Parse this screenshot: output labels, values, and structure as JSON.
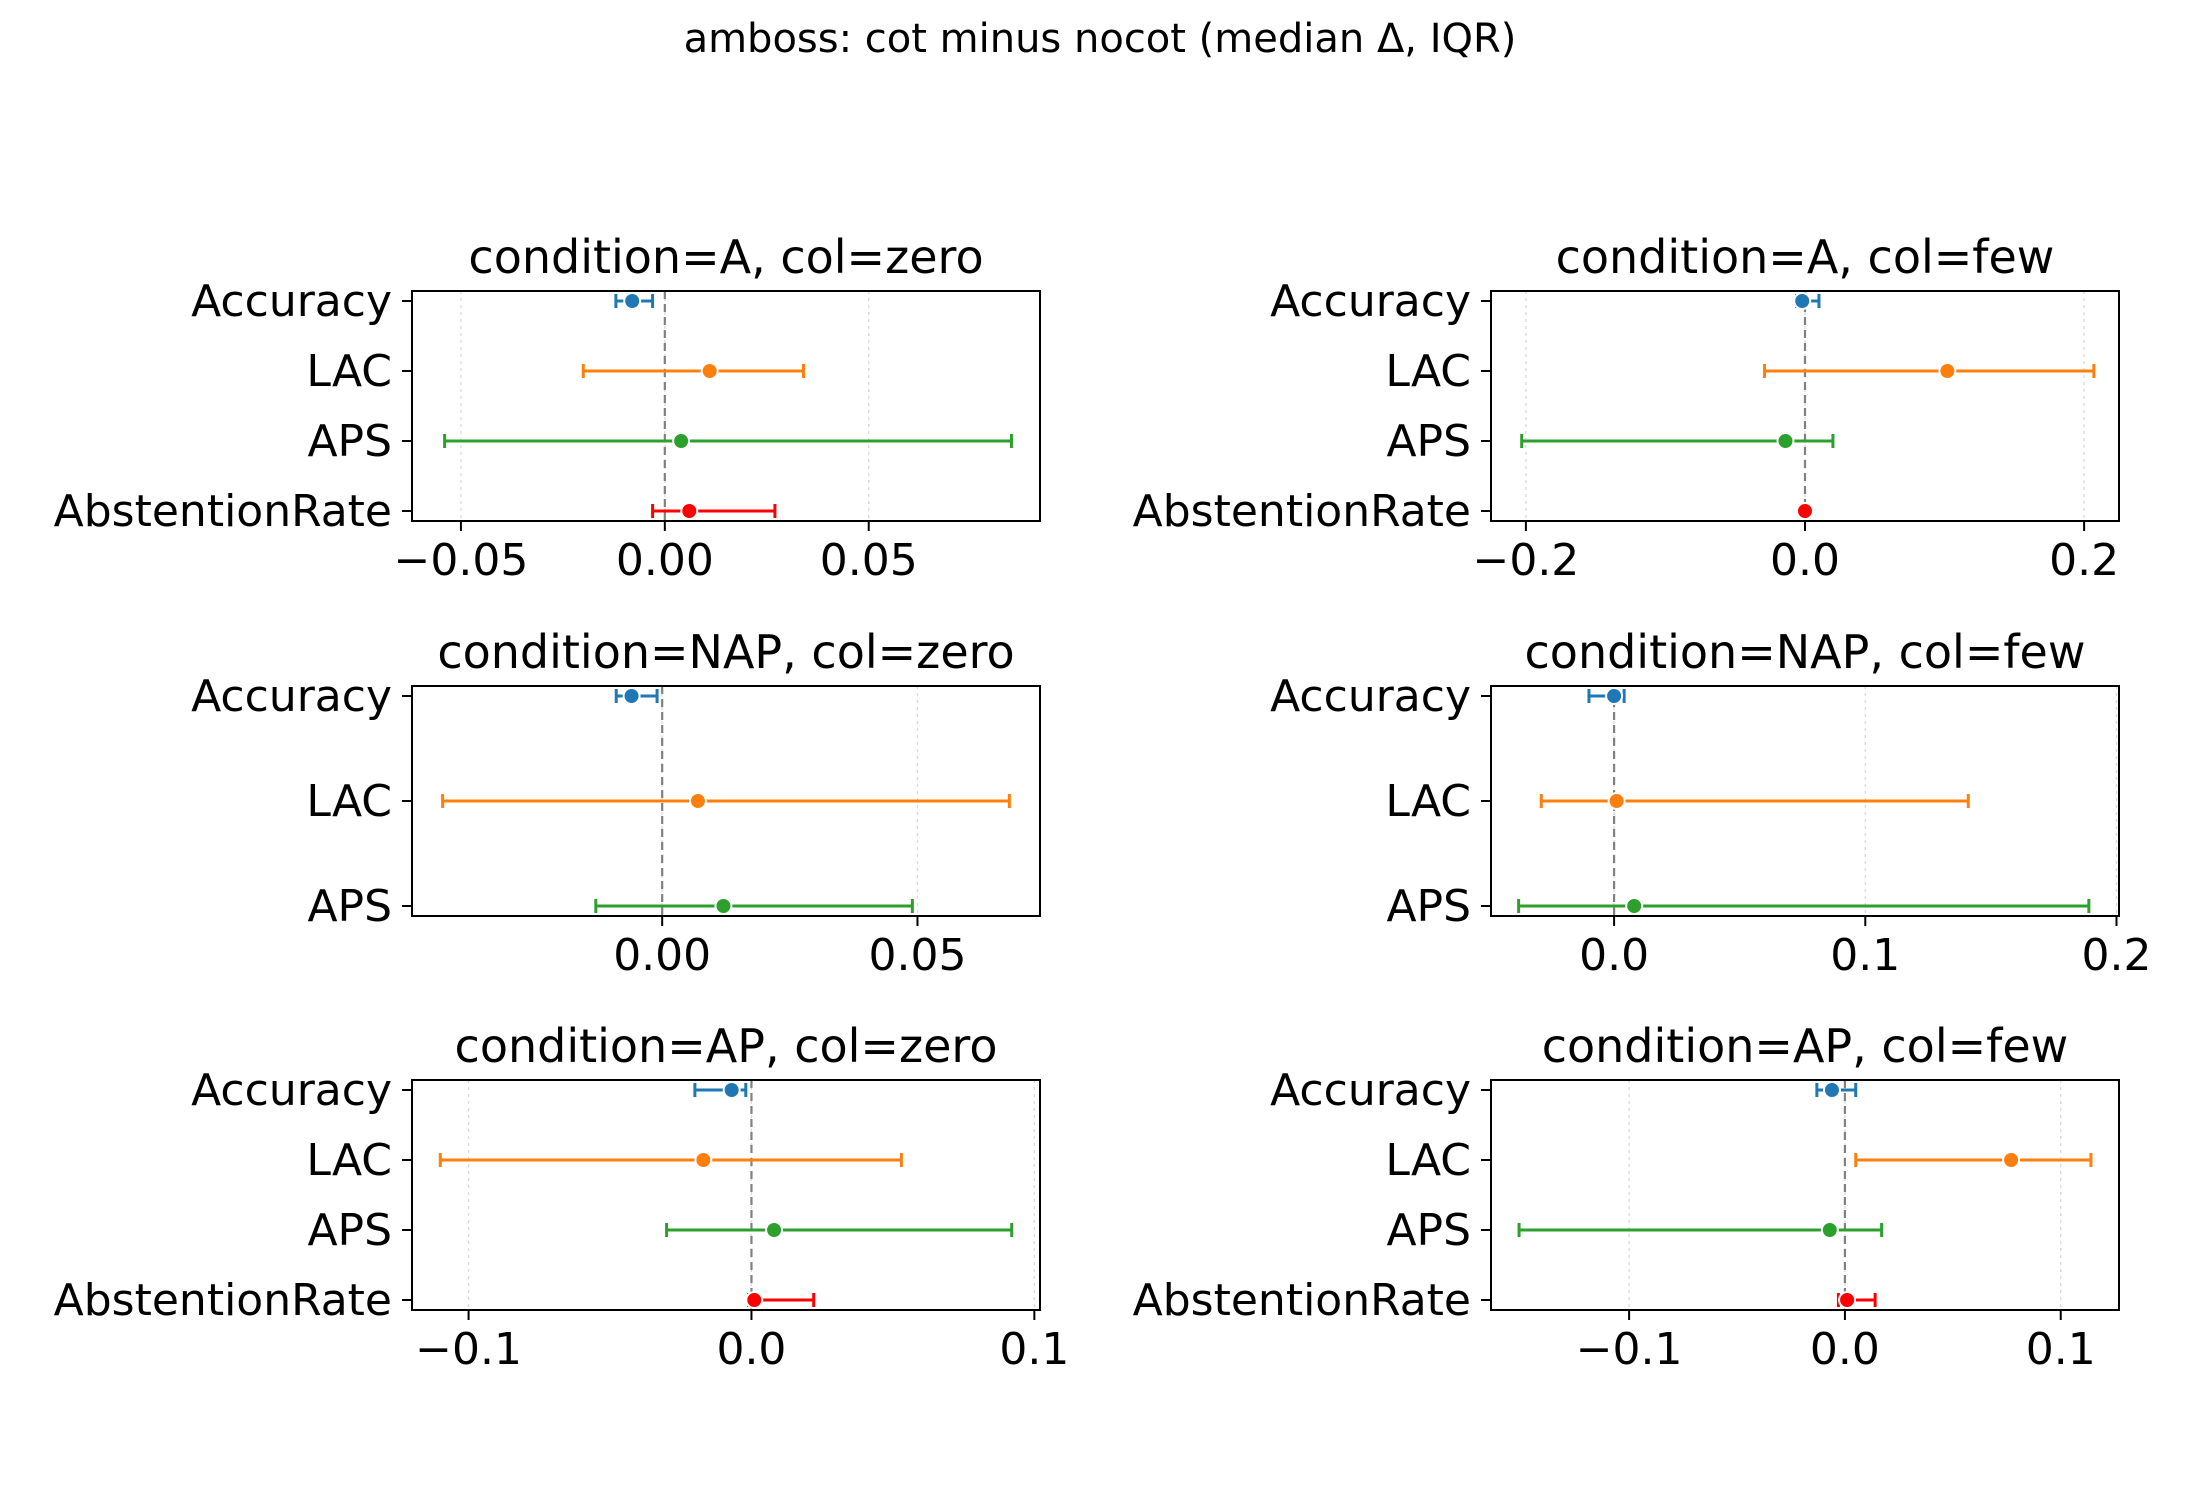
{
  "figure_title": "amboss: cot minus nocot (median Δ, IQR)",
  "colors": {
    "Accuracy": "#1f77b4",
    "LAC": "#ff7f0e",
    "APS": "#2ca02c",
    "AbstentionRate": "#ff0000",
    "zero_line": "#808080",
    "grid": "#d9d9d9"
  },
  "chart_data": [
    {
      "type": "errorbar",
      "title": "condition=A, col=zero",
      "xlim": [
        -0.062,
        0.092
      ],
      "ticks": [
        -0.05,
        0.0,
        0.05
      ],
      "tick_labels": [
        "−0.05",
        "0.00",
        "0.05"
      ],
      "rows": [
        {
          "label": "Accuracy",
          "median": -0.008,
          "q1": -0.012,
          "q3": -0.003
        },
        {
          "label": "LAC",
          "median": 0.011,
          "q1": -0.02,
          "q3": 0.034
        },
        {
          "label": "APS",
          "median": 0.004,
          "q1": -0.054,
          "q3": 0.085
        },
        {
          "label": "AbstentionRate",
          "median": 0.006,
          "q1": -0.003,
          "q3": 0.027
        }
      ]
    },
    {
      "type": "errorbar",
      "title": "condition=A, col=few",
      "xlim": [
        -0.225,
        0.225
      ],
      "ticks": [
        -0.2,
        0.0,
        0.2
      ],
      "tick_labels": [
        "−0.2",
        "0.0",
        "0.2"
      ],
      "rows": [
        {
          "label": "Accuracy",
          "median": -0.002,
          "q1": -0.006,
          "q3": 0.01
        },
        {
          "label": "LAC",
          "median": 0.102,
          "q1": -0.029,
          "q3": 0.207
        },
        {
          "label": "APS",
          "median": -0.014,
          "q1": -0.203,
          "q3": 0.02
        },
        {
          "label": "AbstentionRate",
          "median": 0.0,
          "q1": 0.0,
          "q3": 0.0
        }
      ]
    },
    {
      "type": "errorbar",
      "title": "condition=NAP, col=zero",
      "xlim": [
        -0.049,
        0.074
      ],
      "ticks": [
        0.0,
        0.05
      ],
      "tick_labels": [
        "0.00",
        "0.05"
      ],
      "rows": [
        {
          "label": "Accuracy",
          "median": -0.006,
          "q1": -0.009,
          "q3": -0.001
        },
        {
          "label": "LAC",
          "median": 0.007,
          "q1": -0.043,
          "q3": 0.068
        },
        {
          "label": "APS",
          "median": 0.012,
          "q1": -0.013,
          "q3": 0.049
        }
      ]
    },
    {
      "type": "errorbar",
      "title": "condition=NAP, col=few",
      "xlim": [
        -0.049,
        0.201
      ],
      "ticks": [
        0.0,
        0.1,
        0.2
      ],
      "tick_labels": [
        "0.0",
        "0.1",
        "0.2"
      ],
      "rows": [
        {
          "label": "Accuracy",
          "median": 0.0,
          "q1": -0.01,
          "q3": 0.004
        },
        {
          "label": "LAC",
          "median": 0.001,
          "q1": -0.029,
          "q3": 0.141
        },
        {
          "label": "APS",
          "median": 0.008,
          "q1": -0.038,
          "q3": 0.189
        }
      ]
    },
    {
      "type": "errorbar",
      "title": "condition=AP, col=zero",
      "xlim": [
        -0.12,
        0.102
      ],
      "ticks": [
        -0.1,
        0.0,
        0.1
      ],
      "tick_labels": [
        "−0.1",
        "0.0",
        "0.1"
      ],
      "rows": [
        {
          "label": "Accuracy",
          "median": -0.007,
          "q1": -0.02,
          "q3": -0.002
        },
        {
          "label": "LAC",
          "median": -0.017,
          "q1": -0.11,
          "q3": 0.053
        },
        {
          "label": "APS",
          "median": 0.008,
          "q1": -0.03,
          "q3": 0.092
        },
        {
          "label": "AbstentionRate",
          "median": 0.001,
          "q1": -0.001,
          "q3": 0.022
        }
      ]
    },
    {
      "type": "errorbar",
      "title": "condition=AP, col=few",
      "xlim": [
        -0.164,
        0.127
      ],
      "ticks": [
        -0.1,
        0.0,
        0.1
      ],
      "tick_labels": [
        "−0.1",
        "0.0",
        "0.1"
      ],
      "rows": [
        {
          "label": "Accuracy",
          "median": -0.006,
          "q1": -0.013,
          "q3": 0.005
        },
        {
          "label": "LAC",
          "median": 0.077,
          "q1": 0.005,
          "q3": 0.114
        },
        {
          "label": "APS",
          "median": -0.007,
          "q1": -0.151,
          "q3": 0.017
        },
        {
          "label": "AbstentionRate",
          "median": 0.001,
          "q1": -0.003,
          "q3": 0.014
        }
      ]
    }
  ]
}
